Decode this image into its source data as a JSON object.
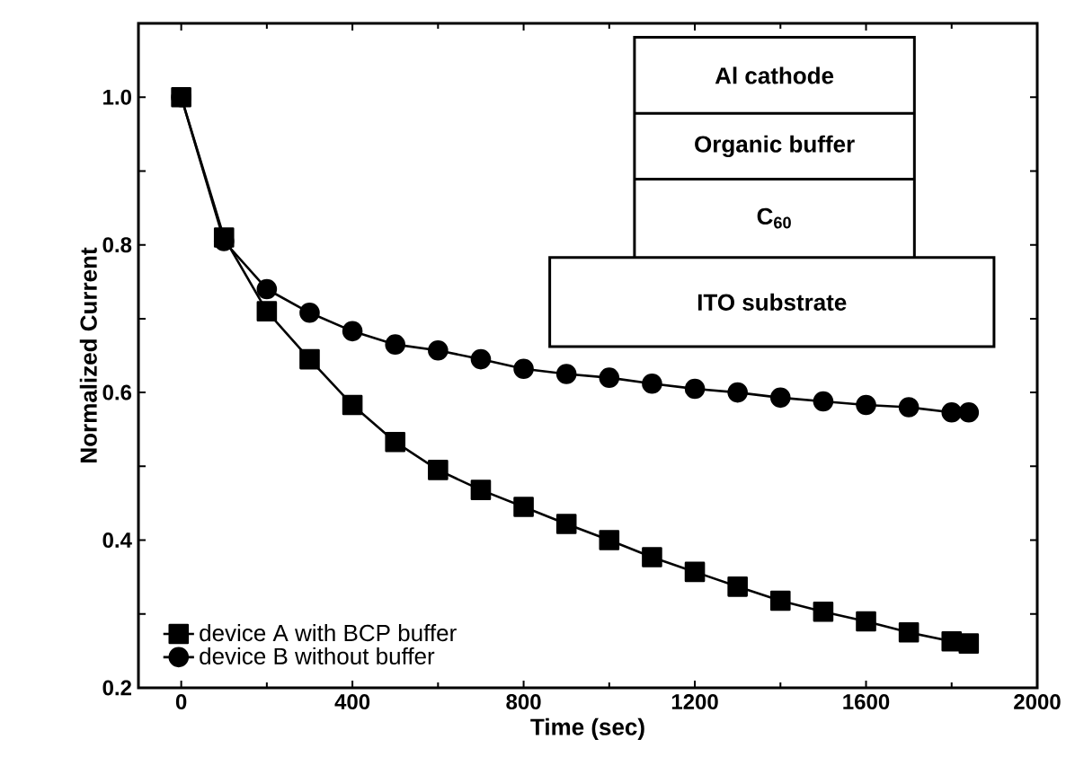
{
  "chart_data": {
    "type": "line",
    "xlabel": "Time (sec)",
    "ylabel": "Normalized Current",
    "x": [
      0,
      100,
      200,
      300,
      400,
      500,
      600,
      700,
      800,
      900,
      1000,
      1100,
      1200,
      1300,
      1400,
      1500,
      1600,
      1700,
      1800,
      1840
    ],
    "series": [
      {
        "name": "device A with BCP buffer",
        "color": "#000000",
        "marker": "square",
        "values": [
          1.0,
          0.81,
          0.71,
          0.645,
          0.583,
          0.533,
          0.495,
          0.468,
          0.445,
          0.422,
          0.4,
          0.377,
          0.357,
          0.337,
          0.318,
          0.303,
          0.29,
          0.275,
          0.263,
          0.26
        ]
      },
      {
        "name": "device B without buffer",
        "color": "#000000",
        "marker": "circle",
        "values": [
          1.0,
          0.805,
          0.74,
          0.708,
          0.683,
          0.665,
          0.657,
          0.645,
          0.632,
          0.625,
          0.62,
          0.612,
          0.605,
          0.6,
          0.593,
          0.588,
          0.583,
          0.58,
          0.573,
          0.573
        ]
      }
    ],
    "xlim": [
      -100,
      2000
    ],
    "ylim": [
      0.2,
      1.1
    ],
    "xticks": [
      0,
      400,
      800,
      1200,
      1600,
      2000
    ],
    "yticks": [
      0.2,
      {
        "value": 0.3,
        "label": null
      },
      0.4,
      {
        "value": 0.5,
        "label": null
      },
      0.6,
      {
        "value": 0.7,
        "label": null
      },
      0.8,
      {
        "value": 0.9,
        "label": null
      },
      {
        "value": 1.0,
        "label": "1.0"
      }
    ],
    "legend": "bottom left",
    "grid": false,
    "annotations": [
      "Al cathode",
      "Organic buffer",
      "C$_{60}$",
      "ITO substrate"
    ]
  }
}
